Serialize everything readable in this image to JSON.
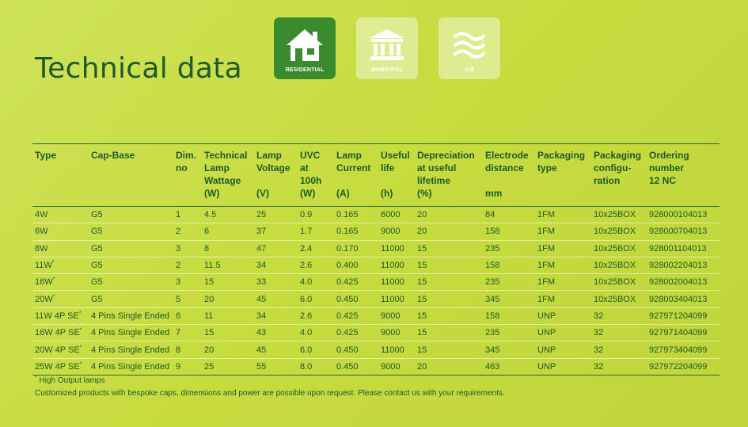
{
  "title": "Technical data",
  "categories": [
    {
      "label": "RESIDENTIAL",
      "icon": "house-icon",
      "active": true
    },
    {
      "label": "MUNICIPAL",
      "icon": "building-icon",
      "active": false
    },
    {
      "label": "AIR",
      "icon": "air-waves-icon",
      "active": false
    }
  ],
  "columns": [
    {
      "lines": [
        "Type"
      ]
    },
    {
      "lines": [
        "Cap-Base"
      ]
    },
    {
      "lines": [
        "Dim.",
        "no"
      ]
    },
    {
      "lines": [
        "Technical",
        "Lamp",
        "Wattage",
        "(W)"
      ]
    },
    {
      "lines": [
        "Lamp",
        "Voltage",
        "",
        "(V)"
      ]
    },
    {
      "lines": [
        "UVC",
        "at",
        "100h",
        "(W)"
      ]
    },
    {
      "lines": [
        "Lamp",
        "Current",
        "",
        "(A)"
      ]
    },
    {
      "lines": [
        "Useful",
        "life",
        "",
        "(h)"
      ]
    },
    {
      "lines": [
        "Depreciation",
        "at useful",
        "lifetime",
        "(%)"
      ]
    },
    {
      "lines": [
        "Electrode",
        "distance",
        "",
        "mm"
      ]
    },
    {
      "lines": [
        "Packaging",
        "type"
      ]
    },
    {
      "lines": [
        "Packaging",
        "configu-",
        "ration"
      ]
    },
    {
      "lines": [
        "Ordering",
        "number",
        "12 NC"
      ]
    }
  ],
  "rows": [
    {
      "type": "4W",
      "type_mark": "",
      "cap": "G5",
      "dim": "1",
      "watt": "4.5",
      "volt": "25",
      "uvc": "0.9",
      "current": "0.165",
      "life": "6000",
      "dep": "20",
      "electrode": "84",
      "pkg": "1FM",
      "config": "10x25BOX",
      "order": "928000104013"
    },
    {
      "type": "6W",
      "type_mark": "",
      "cap": "G5",
      "dim": "2",
      "watt": "6",
      "volt": "37",
      "uvc": "1.7",
      "current": "0.165",
      "life": "9000",
      "dep": "20",
      "electrode": "158",
      "pkg": "1FM",
      "config": "10x25BOX",
      "order": "928000704013"
    },
    {
      "type": "8W",
      "type_mark": "",
      "cap": "G5",
      "dim": "3",
      "watt": "8",
      "volt": "47",
      "uvc": "2.4",
      "current": "0.170",
      "life": "11000",
      "dep": "15",
      "electrode": "235",
      "pkg": "1FM",
      "config": "10x25BOX",
      "order": "928001104013"
    },
    {
      "type": "11W",
      "type_mark": "*",
      "cap": "G5",
      "dim": "2",
      "watt": "11.5",
      "volt": "34",
      "uvc": "2.6",
      "current": "0.400",
      "life": "11000",
      "dep": "15",
      "electrode": "158",
      "pkg": "1FM",
      "config": "10x25BOX",
      "order": "928002204013"
    },
    {
      "type": "16W",
      "type_mark": "*",
      "cap": "G5",
      "dim": "3",
      "watt": "15",
      "volt": "33",
      "uvc": "4.0",
      "current": "0.425",
      "life": "11000",
      "dep": "15",
      "electrode": "235",
      "pkg": "1FM",
      "config": "10x25BOX",
      "order": "928002004013"
    },
    {
      "type": "20W",
      "type_mark": "*",
      "cap": "G5",
      "dim": "5",
      "watt": "20",
      "volt": "45",
      "uvc": "6.0",
      "current": "0.450",
      "life": "11000",
      "dep": "15",
      "electrode": "345",
      "pkg": "1FM",
      "config": "10x25BOX",
      "order": "928003404013"
    },
    {
      "type": "11W 4P SE",
      "type_mark": "*",
      "cap": "4 Pins Single Ended",
      "dim": "6",
      "watt": "11",
      "volt": "34",
      "uvc": "2.6",
      "current": "0.425",
      "life": "9000",
      "dep": "15",
      "electrode": "158",
      "pkg": "UNP",
      "config": "32",
      "order": "927971204099"
    },
    {
      "type": "16W 4P SE",
      "type_mark": "*",
      "cap": "4 Pins Single Ended",
      "dim": "7",
      "watt": "15",
      "volt": "43",
      "uvc": "4.0",
      "current": "0.425",
      "life": "9000",
      "dep": "15",
      "electrode": "235",
      "pkg": "UNP",
      "config": "32",
      "order": "927971404099"
    },
    {
      "type": "20W 4P SE",
      "type_mark": "*",
      "cap": "4 Pins Single Ended",
      "dim": "8",
      "watt": "20",
      "volt": "45",
      "uvc": "6.0",
      "current": "0.450",
      "life": "11000",
      "dep": "15",
      "electrode": "345",
      "pkg": "UNP",
      "config": "32",
      "order": "927973404099"
    },
    {
      "type": "25W 4P SE",
      "type_mark": "*",
      "cap": "4 Pins Single Ended",
      "dim": "9",
      "watt": "25",
      "volt": "55",
      "uvc": "8.0",
      "current": "0.450",
      "life": "9000",
      "dep": "20",
      "electrode": "463",
      "pkg": "UNP",
      "config": "32",
      "order": "927972204099"
    }
  ],
  "footnotes": {
    "mark": "*",
    "high_output": "High Output lamps",
    "customized": "Customized products with bespoke caps, dimensions and power are possible upon request. Please contact us with your requirements."
  },
  "colors": {
    "accent": "#3a8a2e",
    "text": "#1c5a2c",
    "background": "#c7dc3f"
  }
}
